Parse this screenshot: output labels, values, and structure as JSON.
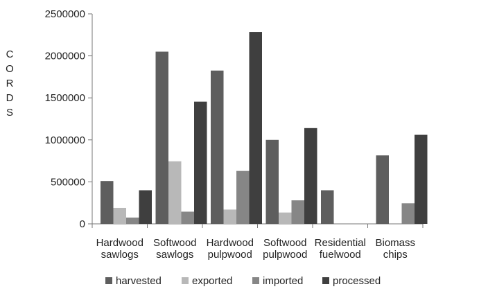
{
  "chart_data": {
    "type": "bar",
    "title": "",
    "xlabel": "",
    "ylabel": "CORDS",
    "ylim": [
      0,
      2500000
    ],
    "yticks": [
      0,
      500000,
      1000000,
      1500000,
      2000000,
      2500000
    ],
    "ytick_labels": [
      "0",
      "500000",
      "1000000",
      "1500000",
      "2000000",
      "2500000"
    ],
    "categories": [
      [
        "Hardwood",
        "sawlogs"
      ],
      [
        "Softwood",
        "sawlogs"
      ],
      [
        "Hardwood",
        "pulpwood"
      ],
      [
        "Softwood",
        "pulpwood"
      ],
      [
        "Residential",
        "fuelwood"
      ],
      [
        "Biomass",
        "chips"
      ]
    ],
    "series": [
      {
        "name": "harvested",
        "color": "#5e5e5e",
        "values": [
          510000,
          2050000,
          1825000,
          1000000,
          400000,
          815000
        ]
      },
      {
        "name": "exported",
        "color": "#b8b8b8",
        "values": [
          190000,
          745000,
          170000,
          135000,
          0,
          0
        ]
      },
      {
        "name": "imported",
        "color": "#868686",
        "values": [
          75000,
          145000,
          630000,
          280000,
          0,
          245000
        ]
      },
      {
        "name": "processed",
        "color": "#3f3f3f",
        "values": [
          400000,
          1455000,
          2285000,
          1140000,
          0,
          1060000
        ]
      }
    ],
    "grid": false,
    "legend_position": "bottom"
  }
}
